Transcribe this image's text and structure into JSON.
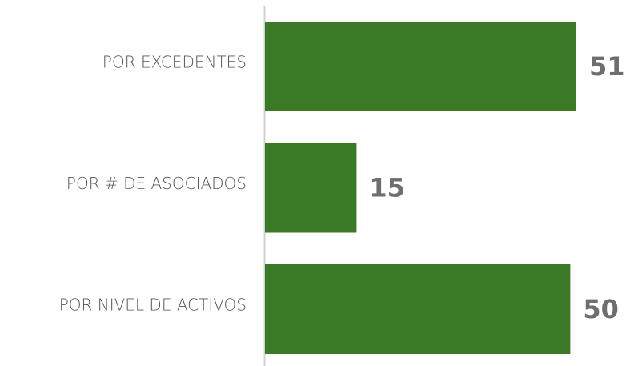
{
  "chart_data": {
    "type": "bar",
    "orientation": "horizontal",
    "categories": [
      "POR EXCEDENTES",
      "POR # DE ASOCIADOS",
      "POR NIVEL DE ACTIVOS"
    ],
    "values": [
      51,
      15,
      50
    ],
    "color": "#3a7a24"
  }
}
